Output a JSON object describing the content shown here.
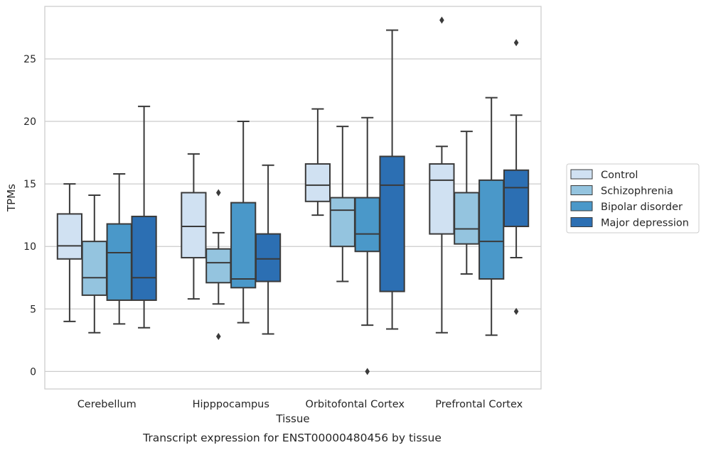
{
  "chart_data": {
    "type": "boxplot",
    "caption": "Transcript expression for ENST00000480456 by tissue",
    "xlabel": "Tissue",
    "ylabel": "TPMs",
    "ylim": [
      -1.4,
      29.2
    ],
    "yticks": [
      0,
      5,
      10,
      15,
      20,
      25
    ],
    "grid": true,
    "legend_position": "right",
    "categories": [
      "Cerebellum",
      "Hipppocampus",
      "Orbitofontal Cortex",
      "Prefrontal Cortex"
    ],
    "series": [
      {
        "name": "Control",
        "color": "#d0e1f2",
        "boxes": [
          {
            "whislo": 4.0,
            "q1": 9.0,
            "med": 10.05,
            "q3": 12.6,
            "whishi": 15.0,
            "fliers": []
          },
          {
            "whislo": 5.8,
            "q1": 9.1,
            "med": 11.6,
            "q3": 14.3,
            "whishi": 17.4,
            "fliers": []
          },
          {
            "whislo": 12.5,
            "q1": 13.6,
            "med": 14.9,
            "q3": 16.6,
            "whishi": 21.0,
            "fliers": []
          },
          {
            "whislo": 3.1,
            "q1": 11.0,
            "med": 15.3,
            "q3": 16.6,
            "whishi": 18.0,
            "fliers": [
              28.1
            ]
          }
        ]
      },
      {
        "name": "Schizophrenia",
        "color": "#94c4df",
        "boxes": [
          {
            "whislo": 3.1,
            "q1": 6.1,
            "med": 7.5,
            "q3": 10.4,
            "whishi": 14.1,
            "fliers": []
          },
          {
            "whislo": 5.4,
            "q1": 7.1,
            "med": 8.7,
            "q3": 9.8,
            "whishi": 11.1,
            "fliers": [
              14.3,
              2.8
            ]
          },
          {
            "whislo": 7.2,
            "q1": 10.0,
            "med": 12.9,
            "q3": 13.9,
            "whishi": 19.6,
            "fliers": []
          },
          {
            "whislo": 7.8,
            "q1": 10.2,
            "med": 11.4,
            "q3": 14.3,
            "whishi": 19.2,
            "fliers": []
          }
        ]
      },
      {
        "name": "Bipolar disorder",
        "color": "#4a98c9",
        "boxes": [
          {
            "whislo": 3.8,
            "q1": 5.7,
            "med": 9.5,
            "q3": 11.8,
            "whishi": 15.8,
            "fliers": []
          },
          {
            "whislo": 3.9,
            "q1": 6.7,
            "med": 7.4,
            "q3": 13.5,
            "whishi": 20.0,
            "fliers": []
          },
          {
            "whislo": 3.7,
            "q1": 9.6,
            "med": 11.0,
            "q3": 13.9,
            "whishi": 20.3,
            "fliers": [
              0.0
            ]
          },
          {
            "whislo": 2.9,
            "q1": 7.4,
            "med": 10.4,
            "q3": 15.3,
            "whishi": 21.9,
            "fliers": []
          }
        ]
      },
      {
        "name": "Major depression",
        "color": "#2c6fb3",
        "boxes": [
          {
            "whislo": 3.5,
            "q1": 5.7,
            "med": 7.5,
            "q3": 12.4,
            "whishi": 21.2,
            "fliers": []
          },
          {
            "whislo": 3.0,
            "q1": 7.2,
            "med": 9.0,
            "q3": 11.0,
            "whishi": 16.5,
            "fliers": []
          },
          {
            "whislo": 3.4,
            "q1": 6.4,
            "med": 14.9,
            "q3": 17.2,
            "whishi": 27.3,
            "fliers": []
          },
          {
            "whislo": 9.1,
            "q1": 11.6,
            "med": 14.7,
            "q3": 16.1,
            "whishi": 20.5,
            "fliers": [
              26.3,
              4.8
            ]
          }
        ]
      }
    ]
  }
}
